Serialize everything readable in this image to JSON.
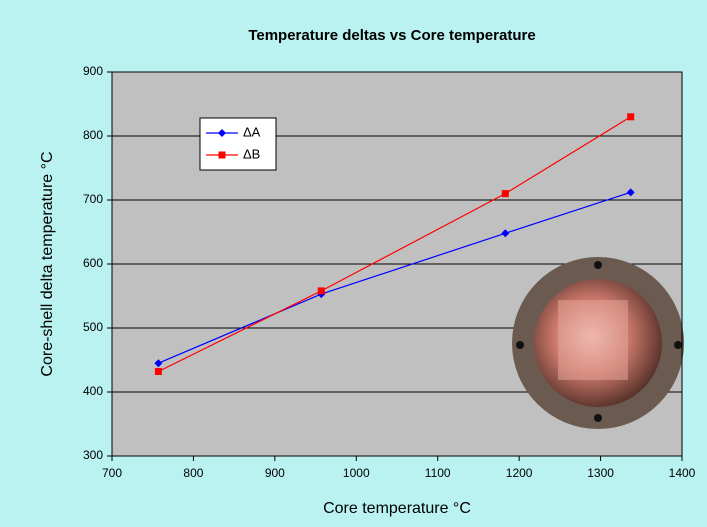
{
  "chart_data": {
    "type": "line",
    "title": "Temperature deltas vs Core temperature",
    "x_label": "Core temperature °C",
    "y_label": "Core-shell delta temperature °C",
    "x": [
      757,
      957,
      1183,
      1337
    ],
    "series": [
      {
        "name": "ΔA",
        "color": "#0000ff",
        "marker": "diamond",
        "values": [
          445,
          553,
          648,
          712
        ]
      },
      {
        "name": "ΔB",
        "color": "#ff0000",
        "marker": "square",
        "values": [
          432,
          558,
          710,
          830
        ]
      }
    ],
    "xlim": [
      700,
      1400
    ],
    "xticks": [
      700,
      800,
      900,
      1000,
      1100,
      1200,
      1300,
      1400
    ],
    "ylim": [
      300,
      900
    ],
    "yticks": [
      300,
      400,
      500,
      600,
      700,
      800,
      900
    ],
    "grid": true
  }
}
